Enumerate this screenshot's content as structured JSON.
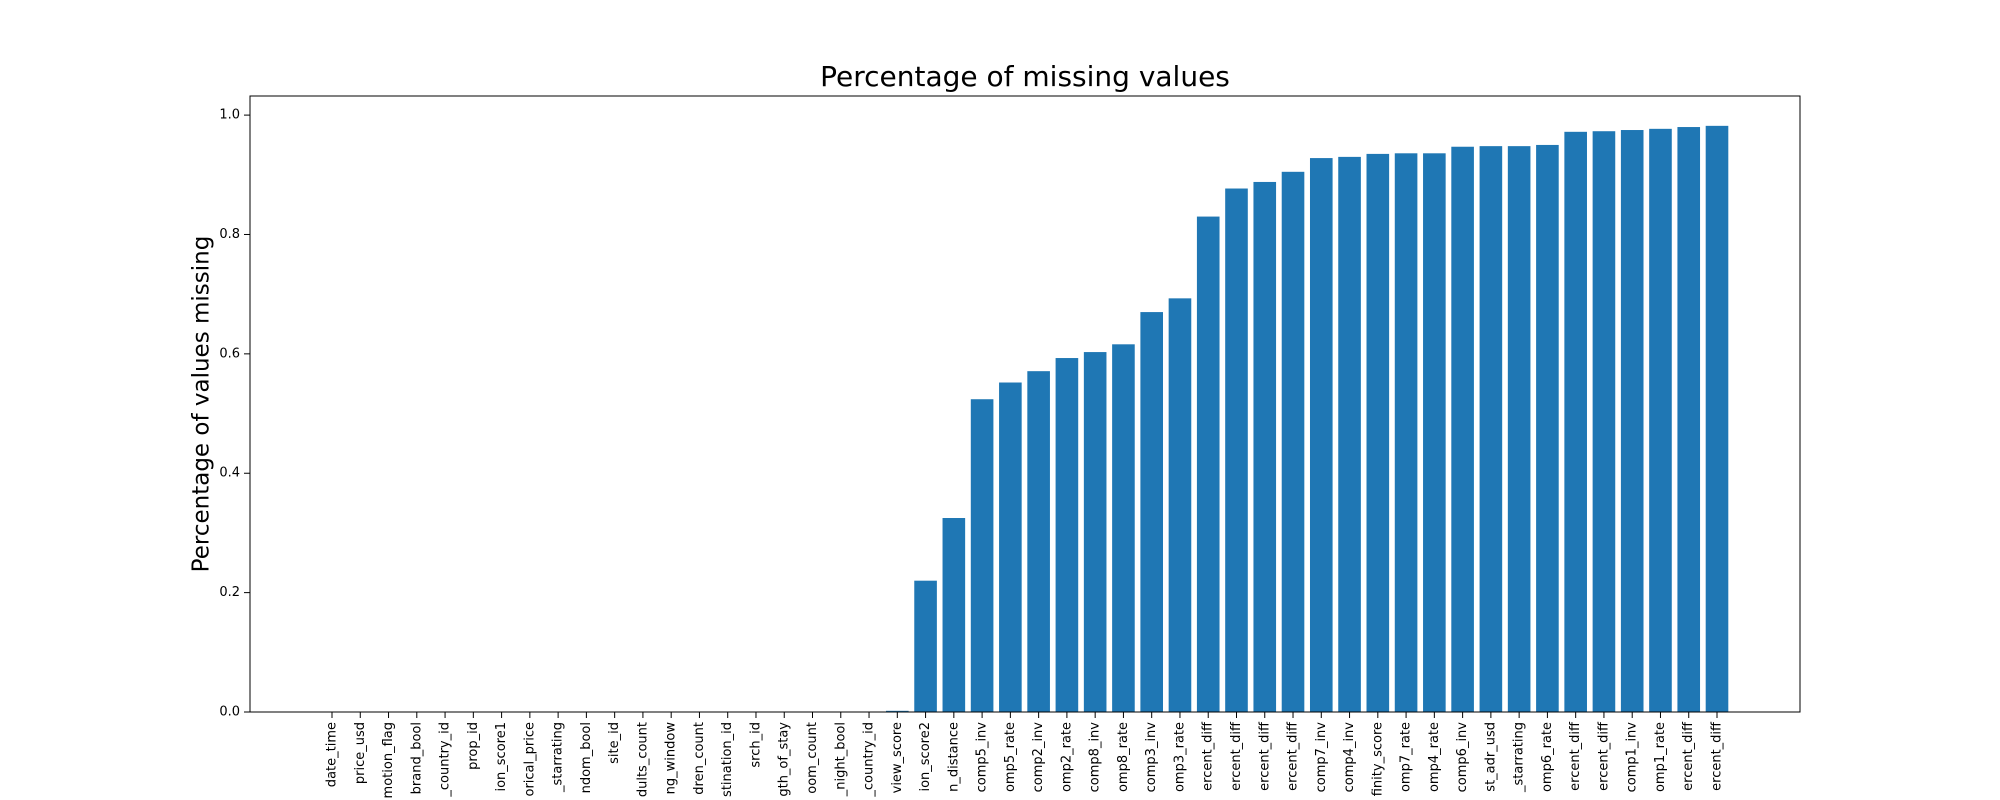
{
  "chart_data": {
    "type": "bar",
    "title": "Percentage of missing values",
    "ylabel": "Percentage of values missing",
    "categories": [
      "date_time",
      "price_usd",
      "motion_flag",
      "brand_bool",
      "_country_id",
      "prop_id",
      "ion_score1",
      "orical_price",
      "_starrating",
      "ndom_bool",
      "site_id",
      "dults_count",
      "ng_window",
      "dren_count",
      "stination_id",
      "srch_id",
      "gth_of_stay",
      "oom_count",
      "_night_bool",
      "_country_id",
      "view_score",
      "ion_score2",
      "n_distance",
      "comp5_inv",
      "omp5_rate",
      "comp2_inv",
      "omp2_rate",
      "comp8_inv",
      "omp8_rate",
      "comp3_inv",
      "omp3_rate",
      "ercent_diff",
      "ercent_diff",
      "ercent_diff",
      "ercent_diff",
      "comp7_inv",
      "comp4_inv",
      "finity_score",
      "omp7_rate",
      "omp4_rate",
      "comp6_inv",
      "st_adr_usd",
      "_starrating",
      "omp6_rate",
      "ercent_diff",
      "ercent_diff",
      "comp1_inv",
      "omp1_rate",
      "ercent_diff",
      "ercent_diff"
    ],
    "values": [
      0,
      0,
      0,
      0,
      0,
      0,
      0,
      0,
      0,
      0,
      0,
      0,
      0,
      0,
      0,
      0,
      0,
      0,
      0,
      0,
      0.002,
      0.22,
      0.325,
      0.524,
      0.552,
      0.571,
      0.593,
      0.603,
      0.616,
      0.67,
      0.693,
      0.83,
      0.877,
      0.888,
      0.905,
      0.928,
      0.93,
      0.935,
      0.936,
      0.936,
      0.947,
      0.948,
      0.948,
      0.95,
      0.972,
      0.973,
      0.975,
      0.977,
      0.98,
      0.982
    ],
    "color": "#1f77b4",
    "ylim": [
      0,
      1.032
    ],
    "yticks": [
      {
        "value": 0,
        "label": "0.0"
      },
      0.2,
      0.4,
      0.6,
      0.8,
      {
        "value": 1,
        "label": "1.0"
      }
    ]
  }
}
